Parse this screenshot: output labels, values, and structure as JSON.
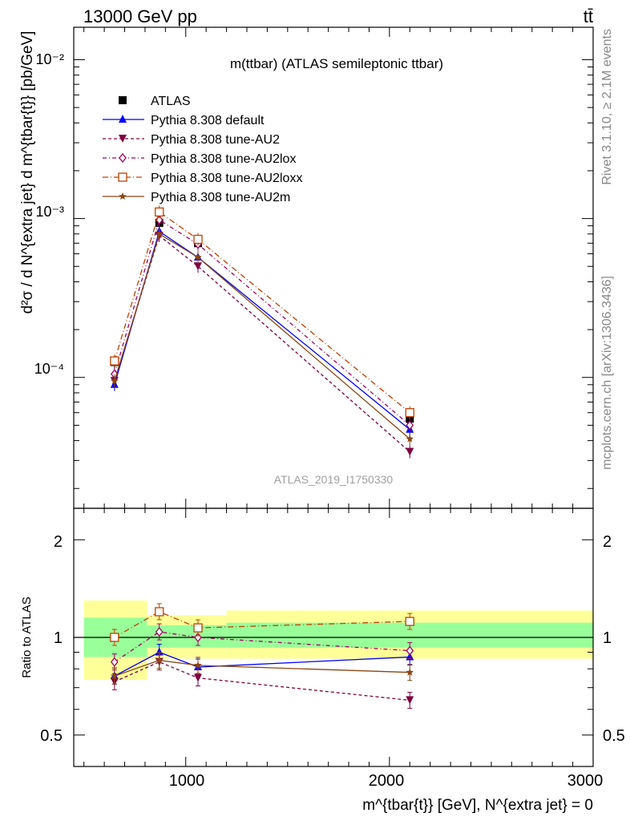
{
  "header": {
    "left": "13000 GeV pp",
    "right": "tt̄"
  },
  "side": {
    "rivet": "Rivet 3.1.10, ≥ 2.1M events",
    "mcplots": "mcplots.cern.ch [arXiv:1306.3436]"
  },
  "upper": {
    "title": "m(ttbar) (ATLAS semileptonic ttbar)",
    "watermark": "ATLAS_2019_I1750330",
    "ylabel": "d²σ / d N^{extra jet} d m^{tbar{t}} [pb/GeV]",
    "yticks": [
      "10⁻²",
      "10⁻³",
      "10⁻⁴"
    ]
  },
  "lower": {
    "ylabel": "Ratio to ATLAS",
    "yticks": [
      "2",
      "1",
      "0.5"
    ]
  },
  "xaxis": {
    "label": "m^{tbar{t}} [GeV], N^{extra jet} = 0",
    "ticks": [
      "1000",
      "2000",
      "3000"
    ]
  },
  "colors": {
    "data": "#000000",
    "default": "#0000ff",
    "AU2": "#800040",
    "AU2lox": "#a00060",
    "AU2loxx": "#c04000",
    "AU2m": "#8b4513",
    "band_inner": "#99ff99",
    "band_outer": "#ffff99"
  },
  "chart_data": [
    {
      "type": "line",
      "panel": "main",
      "title": "m(ttbar) (ATLAS semileptonic ttbar)",
      "xlabel": "m^{tbar{t}} [GeV], N^{extra jet} = 0",
      "ylabel": "d²σ / d N^{extra jet} d m^{tbar{t}} [pb/GeV]",
      "xlim": [
        450,
        3000
      ],
      "ylim": [
        1.5e-05,
        0.016
      ],
      "yscale": "log",
      "legend_position": "top-left",
      "x": [
        650,
        870,
        1060,
        2100
      ],
      "series": [
        {
          "name": "ATLAS",
          "marker": "square-filled",
          "values": [
            0.000125,
            0.00094,
            0.0007,
            5.5e-05
          ]
        },
        {
          "name": "Pythia 8.308 default",
          "marker": "triangle-up",
          "dash": "",
          "values": [
            9e-05,
            0.00083,
            0.00057,
            4.7e-05
          ]
        },
        {
          "name": "Pythia 8.308 tune-AU2",
          "marker": "triangle-down",
          "dash": "4,3",
          "values": [
            9.5e-05,
            0.00078,
            0.0005,
            3.4e-05
          ]
        },
        {
          "name": "Pythia 8.308 tune-AU2lox",
          "marker": "diamond-open",
          "dash": "5,3,1,3",
          "values": [
            0.000105,
            0.00098,
            0.00069,
            5e-05
          ]
        },
        {
          "name": "Pythia 8.308 tune-AU2loxx",
          "marker": "square-open",
          "dash": "7,3,1,3",
          "values": [
            0.000127,
            0.0011,
            0.00074,
            6e-05
          ]
        },
        {
          "name": "Pythia 8.308 tune-AU2m",
          "marker": "star",
          "dash": "",
          "values": [
            9.5e-05,
            0.0008,
            0.00057,
            4.1e-05
          ]
        }
      ]
    },
    {
      "type": "line",
      "panel": "ratio",
      "ylabel": "Ratio to ATLAS",
      "xlim": [
        450,
        3000
      ],
      "ylim": [
        0.4,
        2.5
      ],
      "yscale": "log",
      "reference_line": 1,
      "uncertainty_bands": [
        {
          "from": 500,
          "to": 810,
          "inner": [
            0.87,
            1.15
          ],
          "outer": [
            0.74,
            1.3
          ]
        },
        {
          "from": 810,
          "to": 1200,
          "inner": [
            0.93,
            1.09
          ],
          "outer": [
            0.86,
            1.17
          ]
        },
        {
          "from": 1200,
          "to": 3000,
          "inner": [
            0.93,
            1.11
          ],
          "outer": [
            0.86,
            1.21
          ]
        }
      ],
      "x": [
        650,
        870,
        1060,
        2100
      ],
      "series": [
        {
          "name": "Pythia 8.308 default",
          "values": [
            0.76,
            0.9,
            0.81,
            0.87
          ]
        },
        {
          "name": "Pythia 8.308 tune-AU2",
          "values": [
            0.73,
            0.84,
            0.75,
            0.64
          ]
        },
        {
          "name": "Pythia 8.308 tune-AU2lox",
          "values": [
            0.84,
            1.04,
            1.0,
            0.91
          ]
        },
        {
          "name": "Pythia 8.308 tune-AU2loxx",
          "values": [
            1.0,
            1.2,
            1.07,
            1.12
          ]
        },
        {
          "name": "Pythia 8.308 tune-AU2m",
          "values": [
            0.76,
            0.85,
            0.82,
            0.78
          ]
        }
      ]
    }
  ]
}
